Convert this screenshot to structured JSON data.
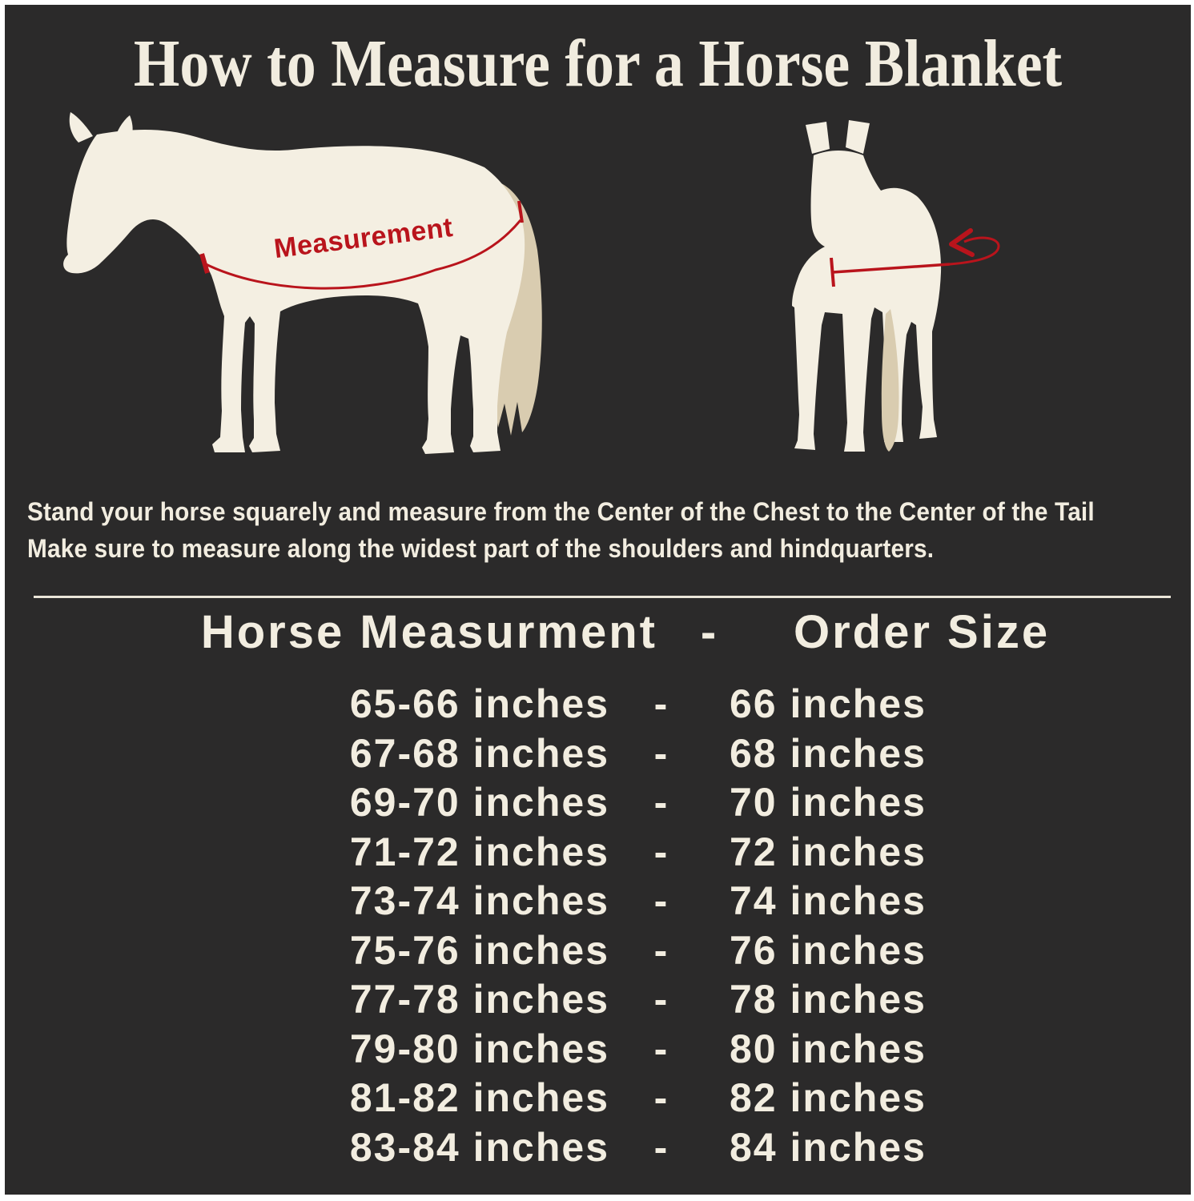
{
  "page": {
    "background_color": "#2b2a2a",
    "frame_color": "#ffffff",
    "text_color": "#f2ede0",
    "accent_red": "#b9141c",
    "horse_body_color": "#f4efe2",
    "horse_tail_color": "#d9ccb0"
  },
  "title": "How to Measure for a Horse Blanket",
  "diagram": {
    "side_horse_label": "Measurement",
    "side_horse_icon": "horse-side-silhouette",
    "front_horse_icon": "horse-front-silhouette"
  },
  "instructions": {
    "line1": "Stand your horse squarely and measure from the Center of the Chest to the Center of the Tail",
    "line2": "Make sure to measure along the widest part of the shoulders and hindquarters."
  },
  "size_table": {
    "header": {
      "col1": "Horse Measurment",
      "separator": "-",
      "col2": "Order Size"
    },
    "rows": [
      {
        "measurement": "65-66 inches",
        "separator": "-",
        "order_size": "66 inches"
      },
      {
        "measurement": "67-68 inches",
        "separator": "-",
        "order_size": "68 inches"
      },
      {
        "measurement": "69-70 inches",
        "separator": "-",
        "order_size": "70 inches"
      },
      {
        "measurement": "71-72 inches",
        "separator": "-",
        "order_size": "72 inches"
      },
      {
        "measurement": "73-74 inches",
        "separator": "-",
        "order_size": "74 inches"
      },
      {
        "measurement": "75-76 inches",
        "separator": "-",
        "order_size": "76 inches"
      },
      {
        "measurement": "77-78 inches",
        "separator": "-",
        "order_size": "78 inches"
      },
      {
        "measurement": "79-80 inches",
        "separator": "-",
        "order_size": "80 inches"
      },
      {
        "measurement": "81-82 inches",
        "separator": "-",
        "order_size": "82 inches"
      },
      {
        "measurement": "83-84 inches",
        "separator": "-",
        "order_size": "84 inches"
      }
    ]
  }
}
